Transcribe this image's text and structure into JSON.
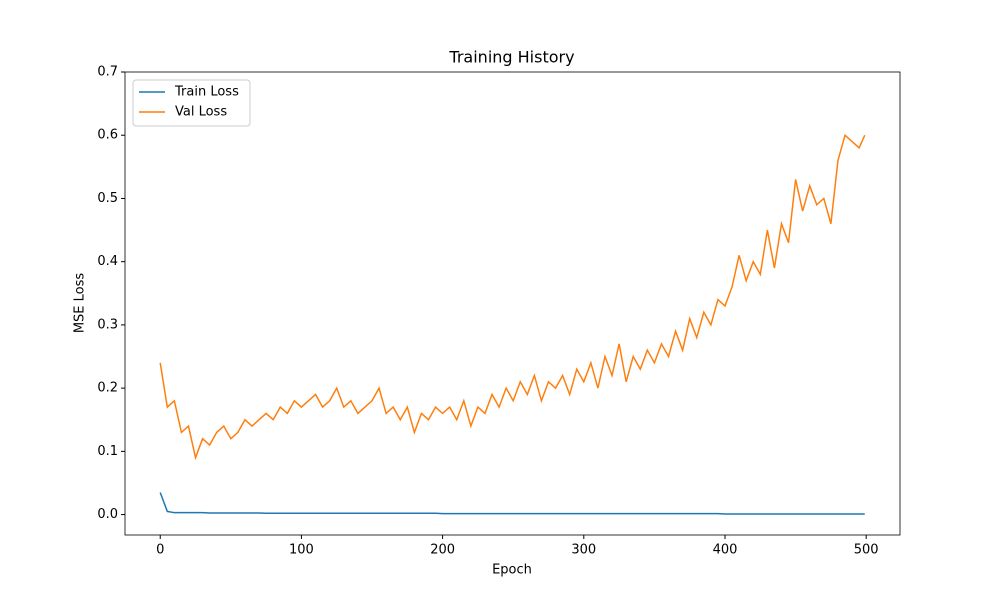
{
  "chart_data": {
    "type": "line",
    "title": "Training History",
    "xlabel": "Epoch",
    "ylabel": "MSE Loss",
    "x": [
      0,
      5,
      10,
      15,
      20,
      25,
      30,
      35,
      40,
      45,
      50,
      55,
      60,
      65,
      70,
      75,
      80,
      85,
      90,
      95,
      100,
      105,
      110,
      115,
      120,
      125,
      130,
      135,
      140,
      145,
      150,
      155,
      160,
      165,
      170,
      175,
      180,
      185,
      190,
      195,
      200,
      205,
      210,
      215,
      220,
      225,
      230,
      235,
      240,
      245,
      250,
      255,
      260,
      265,
      270,
      275,
      280,
      285,
      290,
      295,
      300,
      305,
      310,
      315,
      320,
      325,
      330,
      335,
      340,
      345,
      350,
      355,
      360,
      365,
      370,
      375,
      380,
      385,
      390,
      395,
      400,
      405,
      410,
      415,
      420,
      425,
      430,
      435,
      440,
      445,
      450,
      455,
      460,
      465,
      470,
      475,
      480,
      485,
      490,
      495,
      499
    ],
    "series": [
      {
        "name": "Train Loss",
        "color": "#1f77b4",
        "values": [
          0.035,
          0.005,
          0.003,
          0.003,
          0.003,
          0.003,
          0.003,
          0.0025,
          0.0025,
          0.0025,
          0.0025,
          0.0025,
          0.0025,
          0.0025,
          0.0025,
          0.002,
          0.002,
          0.002,
          0.002,
          0.002,
          0.002,
          0.002,
          0.002,
          0.002,
          0.002,
          0.002,
          0.002,
          0.002,
          0.002,
          0.002,
          0.002,
          0.002,
          0.002,
          0.002,
          0.002,
          0.002,
          0.002,
          0.002,
          0.002,
          0.002,
          0.0015,
          0.0015,
          0.0015,
          0.0015,
          0.0015,
          0.0015,
          0.0015,
          0.0015,
          0.0015,
          0.0015,
          0.0015,
          0.0015,
          0.0015,
          0.0015,
          0.0015,
          0.0015,
          0.0015,
          0.0015,
          0.0015,
          0.0015,
          0.0015,
          0.0015,
          0.0015,
          0.0015,
          0.0015,
          0.0015,
          0.0015,
          0.0015,
          0.0015,
          0.0015,
          0.0015,
          0.0015,
          0.0015,
          0.0015,
          0.0015,
          0.0015,
          0.0015,
          0.0015,
          0.0015,
          0.0015,
          0.001,
          0.001,
          0.001,
          0.001,
          0.001,
          0.001,
          0.001,
          0.001,
          0.001,
          0.001,
          0.001,
          0.001,
          0.001,
          0.001,
          0.001,
          0.001,
          0.001,
          0.001,
          0.001,
          0.001,
          0.001
        ]
      },
      {
        "name": "Val Loss",
        "color": "#ff7f0e",
        "values": [
          0.24,
          0.17,
          0.18,
          0.13,
          0.14,
          0.09,
          0.12,
          0.11,
          0.13,
          0.14,
          0.12,
          0.13,
          0.15,
          0.14,
          0.15,
          0.16,
          0.15,
          0.17,
          0.16,
          0.18,
          0.17,
          0.18,
          0.19,
          0.17,
          0.18,
          0.2,
          0.17,
          0.18,
          0.16,
          0.17,
          0.18,
          0.2,
          0.16,
          0.17,
          0.15,
          0.17,
          0.13,
          0.16,
          0.15,
          0.17,
          0.16,
          0.17,
          0.15,
          0.18,
          0.14,
          0.17,
          0.16,
          0.19,
          0.17,
          0.2,
          0.18,
          0.21,
          0.19,
          0.22,
          0.18,
          0.21,
          0.2,
          0.22,
          0.19,
          0.23,
          0.21,
          0.24,
          0.2,
          0.25,
          0.22,
          0.27,
          0.21,
          0.25,
          0.23,
          0.26,
          0.24,
          0.27,
          0.25,
          0.29,
          0.26,
          0.31,
          0.28,
          0.32,
          0.3,
          0.34,
          0.33,
          0.36,
          0.41,
          0.37,
          0.4,
          0.38,
          0.45,
          0.39,
          0.46,
          0.43,
          0.53,
          0.48,
          0.52,
          0.49,
          0.5,
          0.46,
          0.56,
          0.6,
          0.59,
          0.58,
          0.6
        ]
      }
    ],
    "xlim": [
      -24.95,
      523.95
    ],
    "ylim": [
      -0.0323,
      0.7
    ],
    "xticks": [
      0,
      100,
      200,
      300,
      400,
      500
    ],
    "yticks": [
      {
        "value": 0,
        "label": "0.0"
      },
      {
        "value": 0.1,
        "label": "0.1"
      },
      {
        "value": 0.2,
        "label": "0.2"
      },
      {
        "value": 0.3,
        "label": "0.3"
      },
      {
        "value": 0.4,
        "label": "0.4"
      },
      {
        "value": 0.5,
        "label": "0.5"
      },
      {
        "value": 0.6,
        "label": "0.6"
      },
      {
        "value": 0.7,
        "label": "0.7"
      }
    ],
    "legend": "upper left"
  }
}
